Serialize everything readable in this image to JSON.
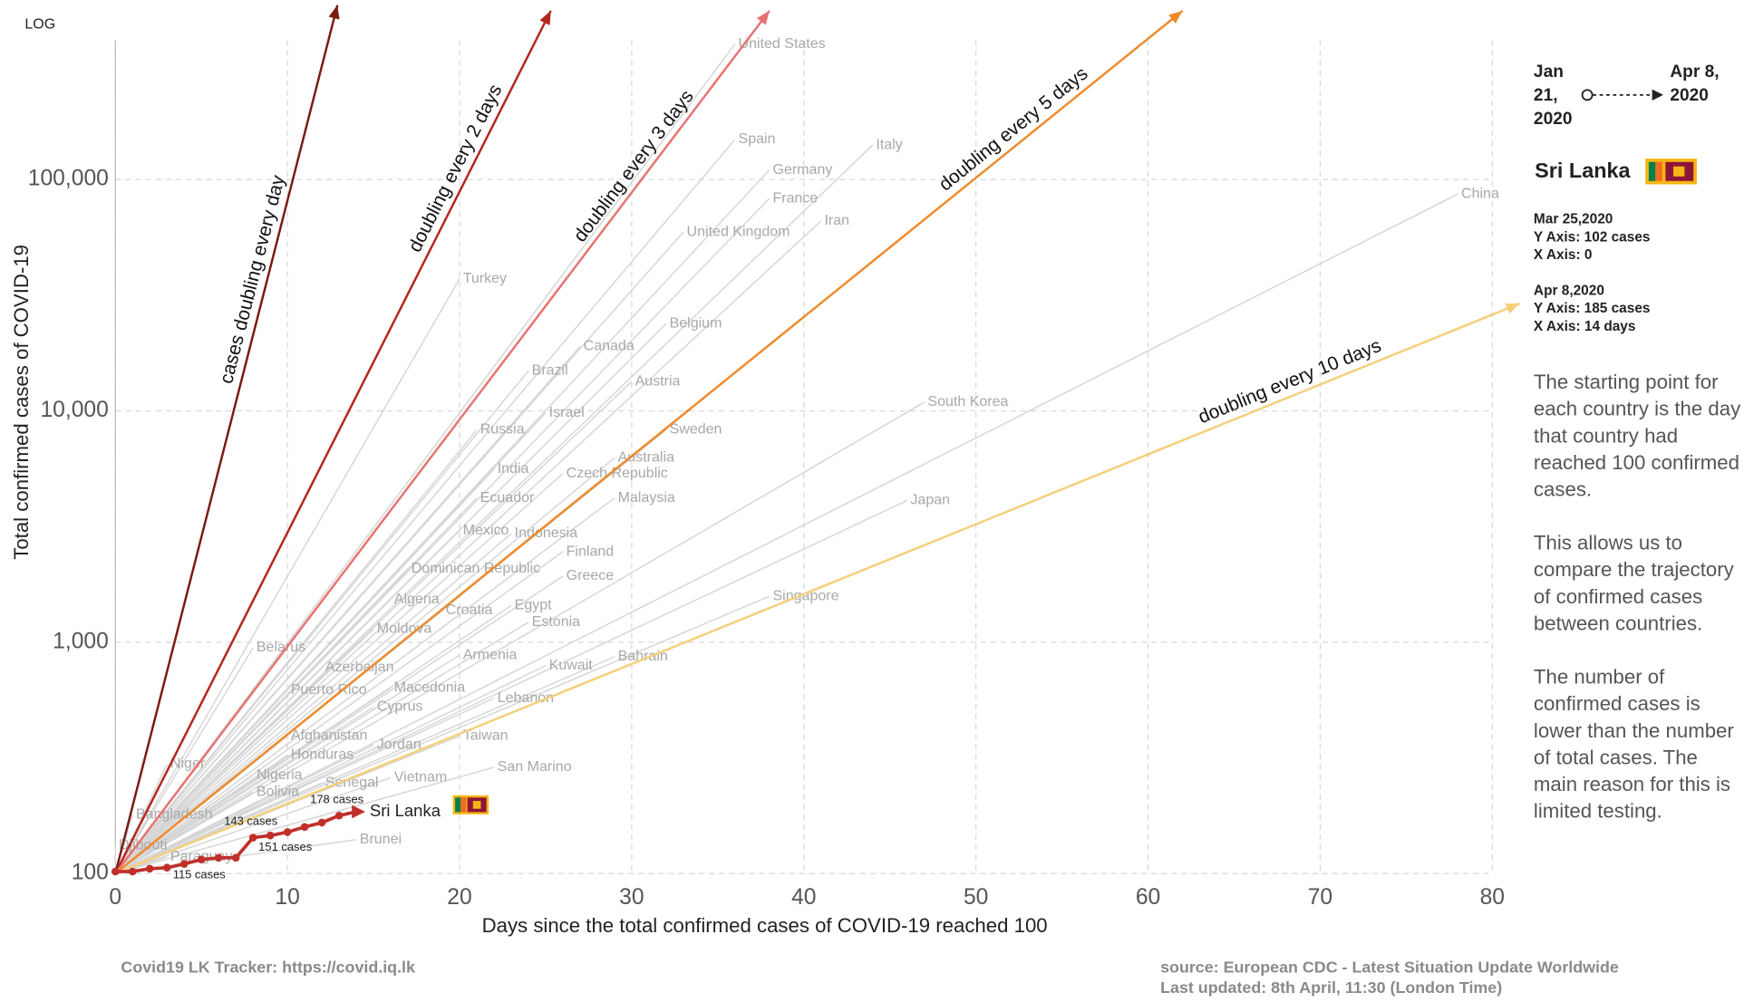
{
  "chart_data": {
    "type": "line",
    "scale_label": "LOG",
    "yscale": "log",
    "xlabel": "Days since the total confirmed cases of COVID-19 reached 100",
    "ylabel": "Total confirmed cases of COVID-19",
    "xlim": [
      0,
      80
    ],
    "ylim": [
      100,
      400000
    ],
    "xticks": [
      0,
      10,
      20,
      30,
      40,
      50,
      60,
      70,
      80
    ],
    "yticks": [
      100,
      {
        "value": 1000,
        "label": "1,000"
      },
      {
        "value": 10000,
        "label": "10,000"
      },
      {
        "value": 100000,
        "label": "100,000"
      }
    ],
    "grid": true,
    "countries": {
      "color": "#d6d6d6",
      "label_color": "#a8a8a8",
      "series": [
        {
          "name": "United States",
          "x": [
            0,
            36
          ],
          "values": [
            100,
            385000
          ]
        },
        {
          "name": "Spain",
          "x": [
            0,
            36
          ],
          "values": [
            100,
            149000
          ]
        },
        {
          "name": "Italy",
          "x": [
            0,
            44
          ],
          "values": [
            100,
            141000
          ]
        },
        {
          "name": "Germany",
          "x": [
            0,
            38
          ],
          "values": [
            100,
            110000
          ]
        },
        {
          "name": "France",
          "x": [
            0,
            38
          ],
          "values": [
            100,
            82800
          ]
        },
        {
          "name": "Iran",
          "x": [
            0,
            41
          ],
          "values": [
            100,
            66200
          ]
        },
        {
          "name": "China",
          "x": [
            0,
            78
          ],
          "values": [
            100,
            86500
          ]
        },
        {
          "name": "United Kingdom",
          "x": [
            0,
            33
          ],
          "values": [
            100,
            59300
          ]
        },
        {
          "name": "Turkey",
          "x": [
            0,
            20
          ],
          "values": [
            100,
            37200
          ]
        },
        {
          "name": "Belgium",
          "x": [
            0,
            32
          ],
          "values": [
            100,
            23800
          ]
        },
        {
          "name": "Canada",
          "x": [
            0,
            27
          ],
          "values": [
            100,
            19000
          ]
        },
        {
          "name": "Brazil",
          "x": [
            0,
            24
          ],
          "values": [
            100,
            14900
          ]
        },
        {
          "name": "Austria",
          "x": [
            0,
            30
          ],
          "values": [
            100,
            13400
          ]
        },
        {
          "name": "Israel",
          "x": [
            0,
            25
          ],
          "values": [
            100,
            9800
          ]
        },
        {
          "name": "South Korea",
          "x": [
            0,
            47
          ],
          "values": [
            100,
            10900
          ]
        },
        {
          "name": "Russia",
          "x": [
            0,
            21
          ],
          "values": [
            100,
            8280
          ]
        },
        {
          "name": "Sweden",
          "x": [
            0,
            32
          ],
          "values": [
            100,
            8280
          ]
        },
        {
          "name": "Australia",
          "x": [
            0,
            29
          ],
          "values": [
            100,
            6270
          ]
        },
        {
          "name": "Czech Republic",
          "x": [
            0,
            26
          ],
          "values": [
            100,
            5360
          ]
        },
        {
          "name": "India",
          "x": [
            0,
            22
          ],
          "values": [
            100,
            5600
          ]
        },
        {
          "name": "Malaysia",
          "x": [
            0,
            29
          ],
          "values": [
            100,
            4200
          ]
        },
        {
          "name": "Japan",
          "x": [
            0,
            46
          ],
          "values": [
            100,
            4100
          ]
        },
        {
          "name": "Ecuador",
          "x": [
            0,
            21
          ],
          "values": [
            100,
            4200
          ]
        },
        {
          "name": "Mexico",
          "x": [
            0,
            20
          ],
          "values": [
            100,
            3040
          ]
        },
        {
          "name": "Indonesia",
          "x": [
            0,
            23
          ],
          "values": [
            100,
            2950
          ]
        },
        {
          "name": "Finland",
          "x": [
            0,
            26
          ],
          "values": [
            100,
            2460
          ]
        },
        {
          "name": "Dominican Republic",
          "x": [
            0,
            17
          ],
          "values": [
            100,
            2080
          ]
        },
        {
          "name": "Greece",
          "x": [
            0,
            26
          ],
          "values": [
            100,
            1930
          ]
        },
        {
          "name": "Singapore",
          "x": [
            0,
            38
          ],
          "values": [
            100,
            1580
          ]
        },
        {
          "name": "Algeria",
          "x": [
            0,
            16
          ],
          "values": [
            100,
            1530
          ]
        },
        {
          "name": "Egypt",
          "x": [
            0,
            23
          ],
          "values": [
            100,
            1440
          ]
        },
        {
          "name": "Croatia",
          "x": [
            0,
            19
          ],
          "values": [
            100,
            1370
          ]
        },
        {
          "name": "Estonia",
          "x": [
            0,
            24
          ],
          "values": [
            100,
            1220
          ]
        },
        {
          "name": "Moldova",
          "x": [
            0,
            15
          ],
          "values": [
            100,
            1140
          ]
        },
        {
          "name": "Bahrain",
          "x": [
            0,
            29
          ],
          "values": [
            100,
            865
          ]
        },
        {
          "name": "Armenia",
          "x": [
            0,
            20
          ],
          "values": [
            100,
            880
          ]
        },
        {
          "name": "Belarus",
          "x": [
            0,
            8
          ],
          "values": [
            100,
            946
          ]
        },
        {
          "name": "Kuwait",
          "x": [
            0,
            25
          ],
          "values": [
            100,
            792
          ]
        },
        {
          "name": "Azerbaijan",
          "x": [
            0,
            12
          ],
          "values": [
            100,
            777
          ]
        },
        {
          "name": "Macedonia",
          "x": [
            0,
            16
          ],
          "values": [
            100,
            634
          ]
        },
        {
          "name": "Puerto Rico",
          "x": [
            0,
            10
          ],
          "values": [
            100,
            620
          ]
        },
        {
          "name": "Lebanon",
          "x": [
            0,
            22
          ],
          "values": [
            100,
            573
          ]
        },
        {
          "name": "Cyprus",
          "x": [
            0,
            15
          ],
          "values": [
            100,
            525
          ]
        },
        {
          "name": "Afghanistan",
          "x": [
            0,
            10
          ],
          "values": [
            100,
            393
          ]
        },
        {
          "name": "Taiwan",
          "x": [
            0,
            20
          ],
          "values": [
            100,
            393
          ]
        },
        {
          "name": "Jordan",
          "x": [
            0,
            15
          ],
          "values": [
            100,
            360
          ]
        },
        {
          "name": "Honduras",
          "x": [
            0,
            10
          ],
          "values": [
            100,
            325
          ]
        },
        {
          "name": "San Marino",
          "x": [
            0,
            22
          ],
          "values": [
            100,
            288
          ]
        },
        {
          "name": "Niger",
          "x": [
            0,
            3
          ],
          "values": [
            100,
            297
          ]
        },
        {
          "name": "Nigeria",
          "x": [
            0,
            8
          ],
          "values": [
            100,
            266
          ]
        },
        {
          "name": "Vietnam",
          "x": [
            0,
            16
          ],
          "values": [
            100,
            260
          ]
        },
        {
          "name": "Senegal",
          "x": [
            0,
            12
          ],
          "values": [
            100,
            246
          ]
        },
        {
          "name": "Bolivia",
          "x": [
            0,
            8
          ],
          "values": [
            100,
            225
          ]
        },
        {
          "name": "Bangladesh",
          "x": [
            0,
            1
          ],
          "values": [
            100,
            180
          ]
        },
        {
          "name": "Brunei",
          "x": [
            0,
            14
          ],
          "values": [
            100,
            140
          ]
        },
        {
          "name": "Djibouti",
          "x": [
            0,
            0
          ],
          "values": [
            100,
            132
          ]
        },
        {
          "name": "Paraguay",
          "x": [
            0,
            3
          ],
          "values": [
            100,
            118
          ]
        }
      ]
    },
    "doubling_lines": [
      {
        "name": "cases doubling every day",
        "color": "#7b1a0f",
        "x": [
          0,
          12.9
        ],
        "values": [
          100,
          567000
        ]
      },
      {
        "name": "doubling every 2 days",
        "color": "#b3261e",
        "x": [
          0,
          25.3
        ],
        "values": [
          100,
          536000
        ]
      },
      {
        "name": "doubling every 3 days",
        "color": "#e87272",
        "x": [
          0,
          38
        ],
        "values": [
          100,
          536000
        ]
      },
      {
        "name": "doubling every 5 days",
        "color": "#ee8a2a",
        "x": [
          0,
          62
        ],
        "values": [
          100,
          536000
        ]
      },
      {
        "name": "doubling every 10 days",
        "color": "#f5cf7a",
        "x": [
          0,
          81.6
        ],
        "values": [
          100,
          29100
        ]
      }
    ],
    "highlight": {
      "name": "Sri Lanka",
      "color": "#c0302b",
      "x": [
        0,
        1,
        2,
        3,
        4,
        5,
        6,
        7,
        8,
        9,
        10,
        11,
        12,
        13,
        14
      ],
      "values": [
        102,
        102,
        105,
        106,
        110,
        115,
        117,
        117,
        143,
        146,
        151,
        159,
        166,
        178,
        185
      ],
      "value_labels": [
        null,
        null,
        null,
        null,
        null,
        "115 cases",
        null,
        null,
        "143 cases",
        null,
        "151 cases",
        null,
        null,
        "178 cases",
        null
      ]
    }
  },
  "panel": {
    "date_start": "Jan 21, 2020",
    "date_end": "Apr 8, 2020",
    "country": "Sri Lanka",
    "points": [
      {
        "date": "Mar 25,2020",
        "y": "Y Axis: 102 cases",
        "x": "X Axis: 0"
      },
      {
        "date": "Apr 8,2020",
        "y": "Y Axis: 185 cases",
        "x": "X Axis: 14 days"
      }
    ],
    "paragraphs": [
      "The starting point for each country is the day that country had reached 100 confirmed cases.",
      "This allows us to compare the trajectory of confirmed cases between countries.",
      "The number of confirmed cases is lower than the number of total cases. The main reason for this is limited testing."
    ]
  },
  "footer": {
    "tracker": "Covid19 LK Tracker: https://covid.iq.lk",
    "source": "source: European CDC - Latest Situation Update Worldwide",
    "updated": "Last updated: 8th April, 11:30 (London Time)"
  }
}
